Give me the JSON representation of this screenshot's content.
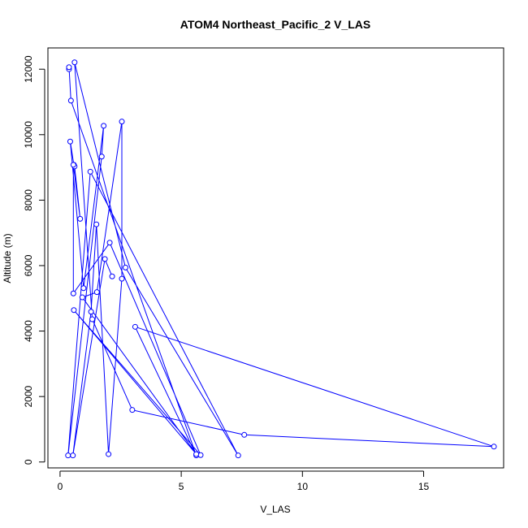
{
  "chart_data": {
    "type": "line",
    "title": "ATOM4 Northeast_Pacific_2 V_LAS",
    "xlabel": "V_LAS",
    "ylabel": "Altitude (m)",
    "xlim": [
      -0.5,
      18.3
    ],
    "ylim": [
      -180,
      12650
    ],
    "xticks": [
      0,
      5,
      10,
      15
    ],
    "yticks": [
      0,
      2000,
      4000,
      6000,
      8000,
      10000,
      12000
    ],
    "series_color": "#0000ff",
    "markers": "open-circle",
    "points": [
      {
        "x": 0.37,
        "y": 12000
      },
      {
        "x": 0.37,
        "y": 12060
      },
      {
        "x": 0.45,
        "y": 11040
      },
      {
        "x": 5.62,
        "y": 200
      },
      {
        "x": 3.1,
        "y": 4130
      },
      {
        "x": 17.9,
        "y": 470
      },
      {
        "x": 7.6,
        "y": 830
      },
      {
        "x": 2.98,
        "y": 1590
      },
      {
        "x": 1.33,
        "y": 4360
      },
      {
        "x": 0.6,
        "y": 12210
      },
      {
        "x": 2.7,
        "y": 5940
      },
      {
        "x": 7.35,
        "y": 200
      },
      {
        "x": 1.25,
        "y": 8870
      },
      {
        "x": 0.33,
        "y": 200
      },
      {
        "x": 1.72,
        "y": 9330
      },
      {
        "x": 1.8,
        "y": 10270
      },
      {
        "x": 0.97,
        "y": 5310
      },
      {
        "x": 0.42,
        "y": 9790
      },
      {
        "x": 0.57,
        "y": 9080
      },
      {
        "x": 0.6,
        "y": 9030
      },
      {
        "x": 0.83,
        "y": 7430
      },
      {
        "x": 0.55,
        "y": 9080
      },
      {
        "x": 0.55,
        "y": 5150
      },
      {
        "x": 2.05,
        "y": 6700
      },
      {
        "x": 5.8,
        "y": 210
      },
      {
        "x": 0.57,
        "y": 4640
      },
      {
        "x": 5.62,
        "y": 240
      },
      {
        "x": 0.92,
        "y": 5030
      },
      {
        "x": 1.52,
        "y": 5190
      },
      {
        "x": 2.55,
        "y": 10400
      },
      {
        "x": 2.55,
        "y": 5600
      },
      {
        "x": 2.0,
        "y": 240
      },
      {
        "x": 1.5,
        "y": 7260
      },
      {
        "x": 1.28,
        "y": 4590
      },
      {
        "x": 0.53,
        "y": 200
      },
      {
        "x": 1.85,
        "y": 6200
      },
      {
        "x": 2.15,
        "y": 5670
      }
    ]
  }
}
